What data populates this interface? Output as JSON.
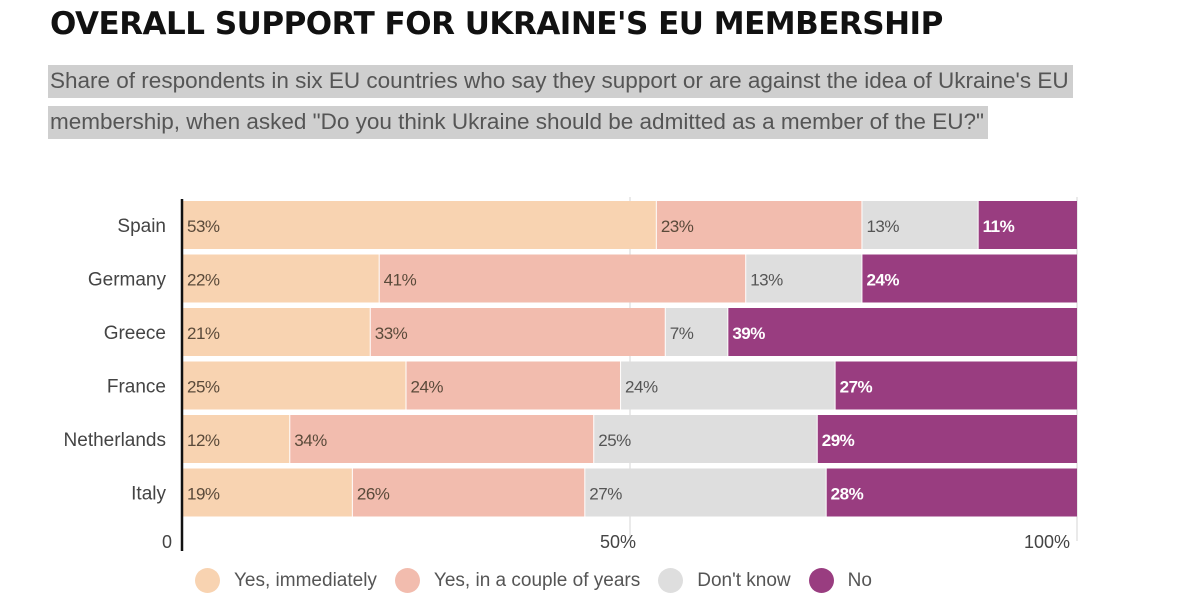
{
  "chart_data": {
    "type": "bar",
    "orientation": "horizontal",
    "stacked": true,
    "title": "OVERALL SUPPORT FOR UKRAINE'S EU MEMBERSHIP",
    "subtitle": "Share of respondents in six EU countries who say they support or are against the idea of Ukraine's EU membership, when asked \"Do you think Ukraine should be admitted as a member of the EU?\"",
    "categories": [
      "Spain",
      "Germany",
      "Greece",
      "France",
      "Netherlands",
      "Italy"
    ],
    "series": [
      {
        "name": "Yes, immediately",
        "color": "#f8d3b1",
        "label_color": "#5a4a3a",
        "values": [
          53,
          22,
          21,
          25,
          12,
          19
        ]
      },
      {
        "name": "Yes, in a couple of years",
        "color": "#f2bcae",
        "label_color": "#5a4a3a",
        "values": [
          23,
          41,
          33,
          24,
          34,
          26
        ]
      },
      {
        "name": "Don't know",
        "color": "#dedede",
        "label_color": "#555555",
        "values": [
          13,
          13,
          7,
          24,
          25,
          27
        ]
      },
      {
        "name": "No",
        "color": "#993d80",
        "label_color": "#ffffff",
        "values": [
          11,
          24,
          39,
          27,
          29,
          28
        ]
      }
    ],
    "value_suffix": "%",
    "x_ticks": [
      {
        "value": 0,
        "label": "0"
      },
      {
        "value": 50,
        "label": "50%"
      },
      {
        "value": 100,
        "label": "100%"
      }
    ],
    "xlim": [
      0,
      100
    ],
    "grid": true,
    "legend_position": "bottom"
  }
}
